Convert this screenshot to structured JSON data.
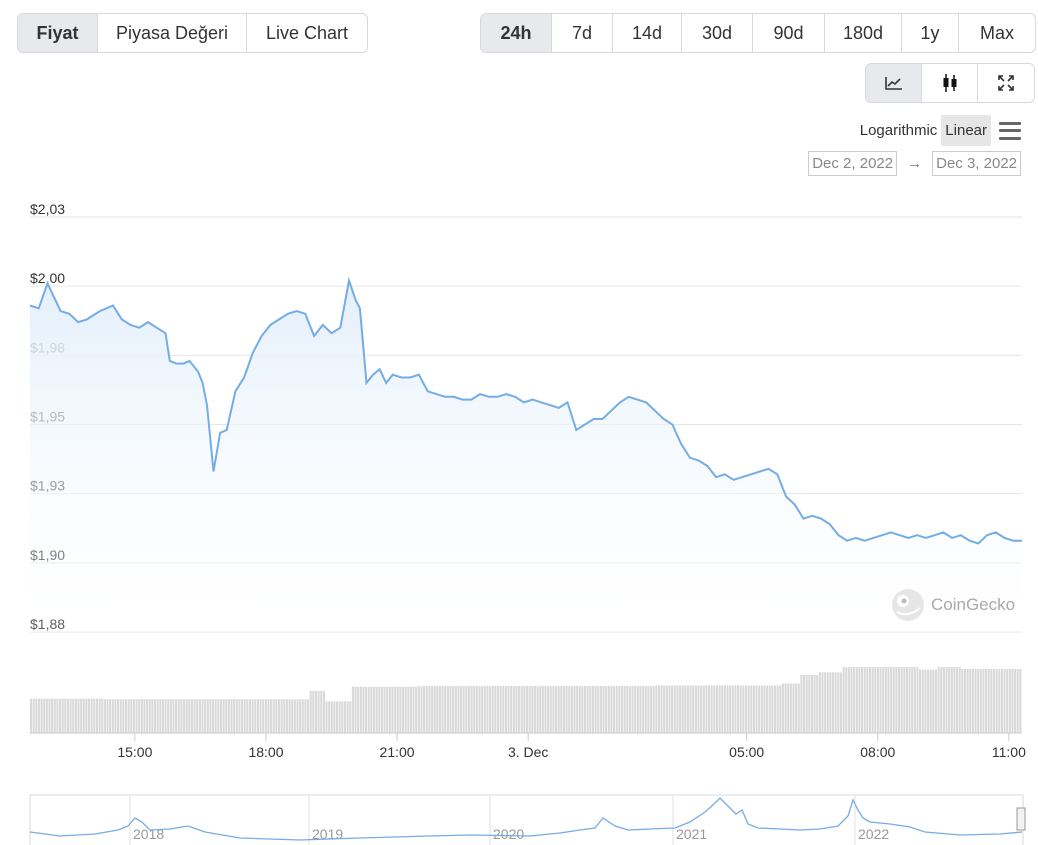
{
  "view_tabs": [
    {
      "label": "Fiyat",
      "active": true
    },
    {
      "label": "Piyasa Değeri",
      "active": false
    },
    {
      "label": "Live Chart",
      "active": false
    }
  ],
  "range_tabs": [
    {
      "label": "24h",
      "active": true
    },
    {
      "label": "7d",
      "active": false
    },
    {
      "label": "14d",
      "active": false
    },
    {
      "label": "30d",
      "active": false
    },
    {
      "label": "90d",
      "active": false
    },
    {
      "label": "180d",
      "active": false
    },
    {
      "label": "1y",
      "active": false
    },
    {
      "label": "Max",
      "active": false
    }
  ],
  "tools": [
    {
      "name": "line-chart-icon",
      "active": true
    },
    {
      "name": "candlestick-icon",
      "active": false
    },
    {
      "name": "fullscreen-icon",
      "active": false
    }
  ],
  "scale": {
    "log_label": "Logarithmic",
    "linear_label": "Linear",
    "selected": "Linear"
  },
  "date_range": {
    "from": "Dec 2, 2022",
    "arrow": "→",
    "to": "Dec 3, 2022"
  },
  "watermark": "CoinGecko",
  "colors": {
    "line": "#74ade6",
    "fill_top": "#e8f2fc",
    "volume": "#d9d9d9",
    "grid": "#e6e6e6"
  },
  "chart_data": {
    "type": "line",
    "title": "",
    "y_axis": {
      "ticks": [
        "$2,03",
        "$2,00",
        "$1,98",
        "$1,95",
        "$1,93",
        "$1,90",
        "$1,88"
      ],
      "tick_values": [
        2.025,
        2.0,
        1.975,
        1.95,
        1.925,
        1.9,
        1.875
      ],
      "ylim": [
        1.875,
        2.025
      ]
    },
    "x_axis": {
      "ticks": [
        "15:00",
        "18:00",
        "21:00",
        "3. Dec",
        "05:00",
        "08:00",
        "11:00"
      ],
      "tick_hours": [
        15,
        18,
        21,
        24,
        29,
        32,
        35
      ],
      "xlim": [
        12.6,
        35.3
      ]
    },
    "series": [
      {
        "x": [
          12.6,
          12.8,
          13.0,
          13.3,
          13.5,
          13.7,
          13.9,
          14.2,
          14.5,
          14.7,
          14.9,
          15.1,
          15.3,
          15.5,
          15.7,
          15.8,
          15.95,
          16.1,
          16.25,
          16.35,
          16.45,
          16.55,
          16.65,
          16.8,
          16.95,
          17.1,
          17.3,
          17.5,
          17.7,
          17.9,
          18.1,
          18.3,
          18.5,
          18.7,
          18.9,
          19.1,
          19.3,
          19.5,
          19.7,
          19.9,
          20.05,
          20.15,
          20.3,
          20.45,
          20.6,
          20.75,
          20.9,
          21.1,
          21.3,
          21.5,
          21.7,
          21.9,
          22.1,
          22.3,
          22.5,
          22.7,
          22.9,
          23.1,
          23.3,
          23.5,
          23.7,
          23.9,
          24.1,
          24.3,
          24.5,
          24.7,
          24.9,
          25.1,
          25.3,
          25.5,
          25.7,
          25.9,
          26.1,
          26.3,
          26.5,
          26.7,
          26.9,
          27.1,
          27.3,
          27.5,
          27.7,
          27.9,
          28.1,
          28.3,
          28.5,
          28.7,
          28.9,
          29.1,
          29.3,
          29.5,
          29.7,
          29.9,
          30.1,
          30.3,
          30.5,
          30.7,
          30.9,
          31.1,
          31.3,
          31.5,
          31.7,
          31.9,
          32.1,
          32.3,
          32.5,
          32.7,
          32.9,
          33.1,
          33.3,
          33.5,
          33.7,
          33.9,
          34.1,
          34.3,
          34.5,
          34.7,
          34.9,
          35.1,
          35.3
        ],
        "values": [
          1.993,
          1.992,
          2.001,
          1.991,
          1.99,
          1.987,
          1.988,
          1.991,
          1.993,
          1.988,
          1.986,
          1.985,
          1.987,
          1.985,
          1.983,
          1.973,
          1.972,
          1.972,
          1.973,
          1.971,
          1.969,
          1.965,
          1.957,
          1.933,
          1.947,
          1.948,
          1.962,
          1.967,
          1.976,
          1.982,
          1.986,
          1.988,
          1.99,
          1.991,
          1.99,
          1.982,
          1.986,
          1.983,
          1.985,
          2.002,
          1.995,
          1.992,
          1.965,
          1.968,
          1.97,
          1.965,
          1.968,
          1.967,
          1.967,
          1.968,
          1.962,
          1.961,
          1.96,
          1.96,
          1.959,
          1.959,
          1.961,
          1.96,
          1.96,
          1.961,
          1.96,
          1.958,
          1.959,
          1.958,
          1.957,
          1.956,
          1.958,
          1.948,
          1.95,
          1.952,
          1.952,
          1.955,
          1.958,
          1.96,
          1.959,
          1.958,
          1.955,
          1.952,
          1.95,
          1.943,
          1.938,
          1.937,
          1.935,
          1.931,
          1.932,
          1.93,
          1.931,
          1.932,
          1.933,
          1.934,
          1.932,
          1.924,
          1.921,
          1.916,
          1.917,
          1.916,
          1.914,
          1.91,
          1.908,
          1.909,
          1.908,
          1.909,
          1.91,
          1.911,
          1.91,
          1.909,
          1.91,
          1.909,
          1.91,
          1.911,
          1.909,
          1.91,
          1.908,
          1.907,
          1.91,
          1.911,
          1.909,
          1.908,
          1.908
        ]
      }
    ],
    "volume": [
      0.52,
      0.52,
      0.52,
      0.52,
      0.52,
      0.52,
      0.52,
      0.52,
      0.52,
      0.52,
      0.52,
      0.52,
      0.52,
      0.52,
      0.52,
      0.52,
      0.52,
      0.52,
      0.52,
      0.52,
      0.52,
      0.52,
      0.52,
      0.52,
      0.52,
      0.52,
      0.52,
      0.52,
      0.51,
      0.51,
      0.51,
      0.51,
      0.51,
      0.51,
      0.51,
      0.51,
      0.51,
      0.51,
      0.51,
      0.51,
      0.51,
      0.51,
      0.51,
      0.51,
      0.51,
      0.51,
      0.51,
      0.51,
      0.51,
      0.51,
      0.51,
      0.51,
      0.51,
      0.51,
      0.51,
      0.51,
      0.51,
      0.51,
      0.51,
      0.51,
      0.51,
      0.51,
      0.51,
      0.51,
      0.51,
      0.51,
      0.51,
      0.51,
      0.51,
      0.51,
      0.51,
      0.51,
      0.51,
      0.51,
      0.51,
      0.51,
      0.51,
      0.51,
      0.51,
      0.51,
      0.51,
      0.51,
      0.51,
      0.51,
      0.51,
      0.51,
      0.51,
      0.51,
      0.51,
      0.51,
      0.51,
      0.51,
      0.51,
      0.51,
      0.51,
      0.51,
      0.51,
      0.51,
      0.51,
      0.51,
      0.51,
      0.51,
      0.51,
      0.51,
      0.51,
      0.51,
      0.64,
      0.64,
      0.64,
      0.64,
      0.64,
      0.64,
      0.48,
      0.48,
      0.48,
      0.48,
      0.48,
      0.48,
      0.48,
      0.48,
      0.48,
      0.48,
      0.7,
      0.7,
      0.7,
      0.7,
      0.7,
      0.7,
      0.7,
      0.7,
      0.7,
      0.7,
      0.7,
      0.7,
      0.7,
      0.7,
      0.7,
      0.7,
      0.7,
      0.7,
      0.7,
      0.7,
      0.7,
      0.7,
      0.7,
      0.7,
      0.7,
      0.71,
      0.71,
      0.71,
      0.71,
      0.71,
      0.71,
      0.71,
      0.71,
      0.71,
      0.71,
      0.71,
      0.71,
      0.71,
      0.71,
      0.71,
      0.71,
      0.71,
      0.71,
      0.71,
      0.71,
      0.71,
      0.71,
      0.71,
      0.71,
      0.71,
      0.71,
      0.71,
      0.71,
      0.71,
      0.71,
      0.71,
      0.71,
      0.71,
      0.71,
      0.71,
      0.71,
      0.71,
      0.71,
      0.71,
      0.71,
      0.71,
      0.71,
      0.71,
      0.71,
      0.71,
      0.71,
      0.71,
      0.71,
      0.71,
      0.71,
      0.71,
      0.71,
      0.71,
      0.71,
      0.71,
      0.71,
      0.71,
      0.71,
      0.71,
      0.71,
      0.71,
      0.71,
      0.71,
      0.71,
      0.71,
      0.71,
      0.71,
      0.71,
      0.71,
      0.71,
      0.71,
      0.71,
      0.71,
      0.71,
      0.71,
      0.71,
      0.71,
      0.71,
      0.71,
      0.71,
      0.71,
      0.71,
      0.71,
      0.71,
      0.71,
      0.71,
      0.71,
      0.71,
      0.71,
      0.71,
      0.72,
      0.72,
      0.72,
      0.72,
      0.72,
      0.72,
      0.72,
      0.72,
      0.72,
      0.72,
      0.72,
      0.72,
      0.72,
      0.72,
      0.72,
      0.72,
      0.72,
      0.72,
      0.72,
      0.72,
      0.72,
      0.72,
      0.72,
      0.72,
      0.72,
      0.72,
      0.72,
      0.72,
      0.72,
      0.72,
      0.72,
      0.72,
      0.72,
      0.72,
      0.72,
      0.72,
      0.72,
      0.72,
      0.72,
      0.72,
      0.72,
      0.72,
      0.72,
      0.72,
      0.72,
      0.72,
      0.72,
      0.72,
      0.75,
      0.75,
      0.75,
      0.75,
      0.75,
      0.75,
      0.75,
      0.88,
      0.88,
      0.88,
      0.88,
      0.88,
      0.88,
      0.88,
      0.92,
      0.92,
      0.92,
      0.92,
      0.92,
      0.92,
      0.92,
      0.92,
      0.92,
      1.0,
      1.0,
      1.0,
      1.0,
      1.0,
      1.0,
      1.0,
      1.0,
      1.0,
      1.0,
      1.0,
      1.0,
      1.0,
      1.0,
      1.0,
      1.0,
      1.0,
      1.0,
      1.0,
      1.0,
      1.0,
      1.0,
      1.0,
      1.0,
      1.0,
      1.0,
      1.0,
      1.0,
      1.0,
      0.96,
      0.96,
      0.96,
      0.96,
      0.96,
      0.96,
      0.96,
      1.0,
      1.0,
      1.0,
      1.0,
      1.0,
      1.0,
      1.0,
      1.0,
      1.0,
      0.97,
      0.97,
      0.97,
      0.97,
      0.97,
      0.97,
      0.97,
      0.97,
      0.97,
      0.97,
      0.97,
      0.97,
      0.97,
      0.97,
      0.97,
      0.97,
      0.97,
      0.97,
      0.97,
      0.97,
      0.97,
      0.97,
      0.97
    ],
    "navigator": {
      "labels": [
        "2018",
        "2019",
        "2020",
        "2021",
        "2022"
      ]
    }
  }
}
